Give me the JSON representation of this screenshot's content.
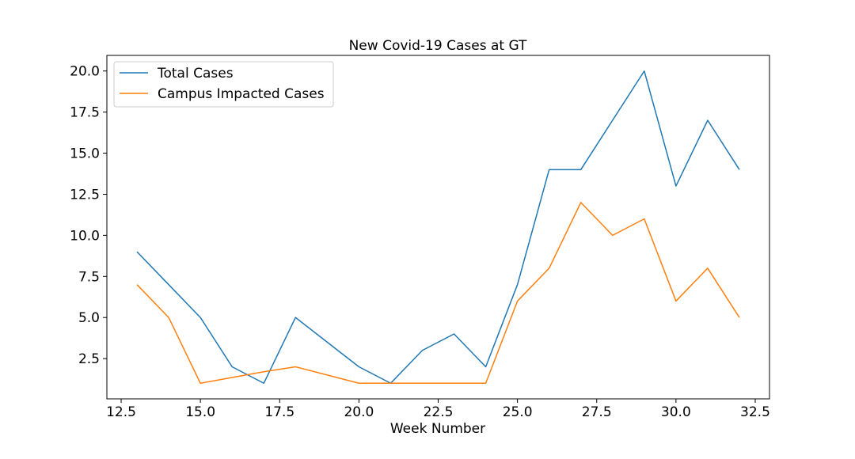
{
  "chart_data": {
    "type": "line",
    "title": "New Covid-19 Cases at GT",
    "xlabel": "Week Number",
    "ylabel": "",
    "xlim": [
      12.05,
      32.95
    ],
    "ylim": [
      0.05,
      20.95
    ],
    "xticks": [
      12.5,
      15.0,
      17.5,
      20.0,
      22.5,
      25.0,
      27.5,
      30.0,
      32.5
    ],
    "xtick_labels": [
      "12.5",
      "15.0",
      "17.5",
      "20.0",
      "22.5",
      "25.0",
      "27.5",
      "30.0",
      "32.5"
    ],
    "yticks": [
      2.5,
      5.0,
      7.5,
      10.0,
      12.5,
      15.0,
      17.5,
      20.0
    ],
    "ytick_labels": [
      "2.5",
      "5.0",
      "7.5",
      "10.0",
      "12.5",
      "15.0",
      "17.5",
      "20.0"
    ],
    "grid": false,
    "legend_position": "top-left",
    "x": [
      13,
      14,
      15,
      16,
      17,
      18,
      19,
      20,
      21,
      22,
      23,
      24,
      25,
      26,
      27,
      28,
      29,
      30,
      31,
      32
    ],
    "series": [
      {
        "name": "Total Cases",
        "color": "#1f77b4",
        "values": [
          9,
          7,
          5,
          2,
          1,
          5,
          3.5,
          2,
          1,
          3,
          4,
          2,
          7,
          14,
          14,
          17,
          20,
          13,
          17,
          14
        ]
      },
      {
        "name": "Campus Impacted Cases",
        "color": "#ff7f0e",
        "values": [
          7,
          5,
          1,
          1.35,
          1.7,
          2,
          1.5,
          1,
          1,
          1,
          1,
          1,
          6,
          8,
          12,
          10,
          11,
          6,
          8,
          5
        ]
      }
    ]
  }
}
